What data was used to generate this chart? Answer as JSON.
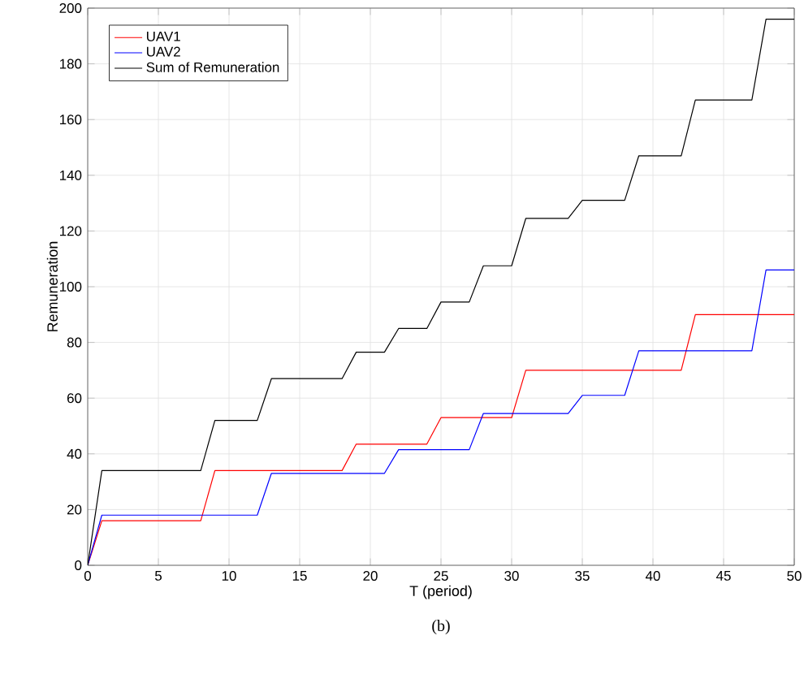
{
  "chart_data": {
    "type": "line",
    "xlabel": "T (period)",
    "ylabel": "Remuneration",
    "annotations": [
      "(b)"
    ],
    "xlim": [
      0,
      50
    ],
    "ylim": [
      0,
      200
    ],
    "xticks": [
      0,
      5,
      10,
      15,
      20,
      25,
      30,
      35,
      40,
      45,
      50
    ],
    "yticks": [
      0,
      20,
      40,
      60,
      80,
      100,
      120,
      140,
      160,
      180,
      200
    ],
    "grid": true,
    "legend": "top left",
    "marker": "none",
    "line_style": "solid",
    "series": [
      {
        "name": "UAV1",
        "color": "#ff0000",
        "x": [
          0,
          1,
          8,
          9,
          18,
          19,
          24,
          25,
          30,
          31,
          42,
          43,
          50
        ],
        "values": [
          0,
          16,
          16,
          34,
          34,
          43.5,
          43.5,
          53,
          53,
          70,
          70,
          90,
          90
        ]
      },
      {
        "name": "UAV2",
        "color": "#0000ff",
        "x": [
          0,
          1,
          12,
          13,
          21,
          22,
          27,
          28,
          34,
          35,
          38,
          39,
          47,
          48,
          50
        ],
        "values": [
          0,
          18,
          18,
          33,
          33,
          41.5,
          41.5,
          54.5,
          54.5,
          61,
          61,
          77,
          77,
          106,
          106
        ]
      },
      {
        "name": "Sum of Remuneration",
        "color": "#000000",
        "x": [
          0,
          1,
          8,
          9,
          12,
          13,
          18,
          19,
          21,
          22,
          24,
          25,
          27,
          28,
          30,
          31,
          34,
          35,
          38,
          39,
          42,
          43,
          47,
          48,
          50
        ],
        "values": [
          0,
          34,
          34,
          52,
          52,
          67,
          67,
          76.5,
          76.5,
          85,
          85,
          94.5,
          94.5,
          107.5,
          107.5,
          124.5,
          124.5,
          131,
          131,
          147,
          147,
          167,
          167,
          196,
          196
        ]
      }
    ]
  }
}
